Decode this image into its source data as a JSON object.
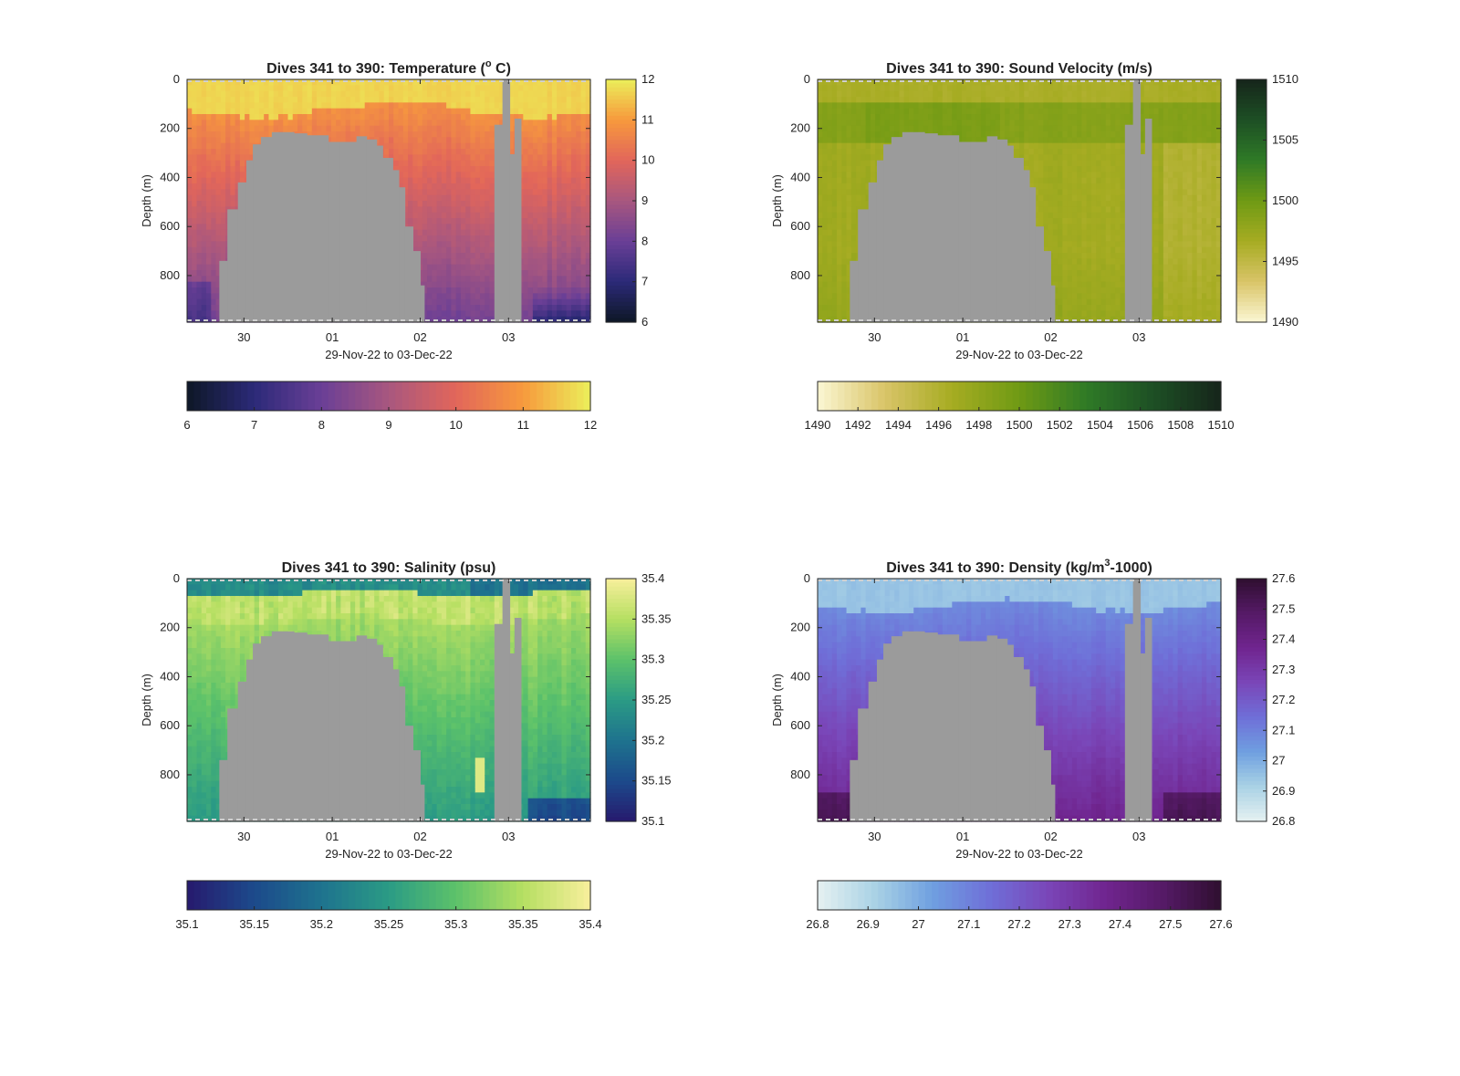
{
  "chart_data": [
    {
      "type": "heatmap",
      "title": "Dives 341 to 390: Temperature (° C)",
      "title_main": "Dives 341 to 390: Temperature (",
      "title_sup": "o",
      "title_end": " C)",
      "xlabel": "29-Nov-22 to 03-Dec-22",
      "ylabel": "Depth (m)",
      "x_ticks": [
        "30",
        "01",
        "02",
        "03"
      ],
      "y_ticks": [
        "0",
        "200",
        "400",
        "600",
        "800"
      ],
      "y_tick_values": [
        0,
        200,
        400,
        600,
        800
      ],
      "ylim": [
        0,
        990
      ],
      "y_reversed": true,
      "colorbar": {
        "ticks": [
          "6",
          "7",
          "8",
          "9",
          "10",
          "11",
          "12"
        ],
        "range": [
          6,
          12
        ],
        "colors": [
          "#0d1726",
          "#2c2a78",
          "#6a3f96",
          "#a8577f",
          "#e2665a",
          "#f79a3d",
          "#ebef5a"
        ]
      },
      "colorbar_horizontal_ticks": [
        "6",
        "7",
        "8",
        "9",
        "10",
        "11",
        "12"
      ],
      "surface_value": 11.6,
      "deep_value": 8.2,
      "missing_color": "#9b9b9b"
    },
    {
      "type": "heatmap",
      "title": "Dives 341 to 390: Sound Velocity (m/s)",
      "title_main": "Dives 341 to 390: Sound Velocity (m/s)",
      "xlabel": "29-Nov-22 to 03-Dec-22",
      "ylabel": "Depth (m)",
      "x_ticks": [
        "30",
        "01",
        "02",
        "03"
      ],
      "y_ticks": [
        "0",
        "200",
        "400",
        "600",
        "800"
      ],
      "y_tick_values": [
        0,
        200,
        400,
        600,
        800
      ],
      "ylim": [
        0,
        990
      ],
      "y_reversed": true,
      "colorbar": {
        "ticks": [
          "1490",
          "1495",
          "1500",
          "1505",
          "1510"
        ],
        "range": [
          1490,
          1510
        ],
        "colors": [
          "#fbf6d3",
          "#d9c468",
          "#a6ac22",
          "#6f9a14",
          "#2f7a26",
          "#1d4f25",
          "#16251a"
        ]
      },
      "colorbar_horizontal_ticks": [
        "1490",
        "1492",
        "1494",
        "1496",
        "1498",
        "1500",
        "1502",
        "1504",
        "1506",
        "1508",
        "1510"
      ],
      "surface_value": 1497.0,
      "deep_value": 1496.5,
      "missing_color": "#9b9b9b"
    },
    {
      "type": "heatmap",
      "title": "Dives 341 to 390: Salinity (psu)",
      "title_main": "Dives 341 to 390: Salinity (psu)",
      "xlabel": "29-Nov-22 to 03-Dec-22",
      "ylabel": "Depth (m)",
      "x_ticks": [
        "30",
        "01",
        "02",
        "03"
      ],
      "y_ticks": [
        "0",
        "200",
        "400",
        "600",
        "800"
      ],
      "y_tick_values": [
        0,
        200,
        400,
        600,
        800
      ],
      "ylim": [
        0,
        990
      ],
      "y_reversed": true,
      "colorbar": {
        "ticks": [
          "35.1",
          "35.15",
          "35.2",
          "35.25",
          "35.3",
          "35.35",
          "35.4"
        ],
        "range": [
          35.1,
          35.4
        ],
        "colors": [
          "#271a6e",
          "#1c4a8b",
          "#1e738e",
          "#2b9b85",
          "#5cc26a",
          "#b6df62",
          "#f8ef9c"
        ]
      },
      "colorbar_horizontal_ticks": [
        "35.1",
        "35.15",
        "35.2",
        "35.25",
        "35.3",
        "35.35",
        "35.4"
      ],
      "surface_value": 35.26,
      "deep_value": 35.28,
      "missing_color": "#9b9b9b"
    },
    {
      "type": "heatmap",
      "title": "Dives 341 to 390: Density (kg/m³-1000)",
      "title_main": "Dives 341 to 390: Density (kg/m",
      "title_sup": "3",
      "title_end": "-1000)",
      "xlabel": "29-Nov-22 to 03-Dec-22",
      "ylabel": "Depth (m)",
      "x_ticks": [
        "30",
        "01",
        "02",
        "03"
      ],
      "y_ticks": [
        "0",
        "200",
        "400",
        "600",
        "800"
      ],
      "y_tick_values": [
        0,
        200,
        400,
        600,
        800
      ],
      "ylim": [
        0,
        990
      ],
      "y_reversed": true,
      "colorbar": {
        "ticks": [
          "26.8",
          "26.9",
          "27",
          "27.1",
          "27.2",
          "27.3",
          "27.4",
          "27.5",
          "27.6"
        ],
        "range": [
          26.8,
          27.6
        ],
        "colors": [
          "#e6f1f1",
          "#a9d2e5",
          "#6f9fe0",
          "#6f6fd8",
          "#7a46b8",
          "#70258f",
          "#551a66",
          "#2f0f30"
        ]
      },
      "colorbar_horizontal_ticks": [
        "26.8",
        "26.9",
        "27",
        "27.1",
        "27.2",
        "27.3",
        "27.4",
        "27.5",
        "27.6"
      ],
      "surface_value": 26.93,
      "deep_value": 27.33,
      "missing_color": "#9b9b9b"
    }
  ]
}
